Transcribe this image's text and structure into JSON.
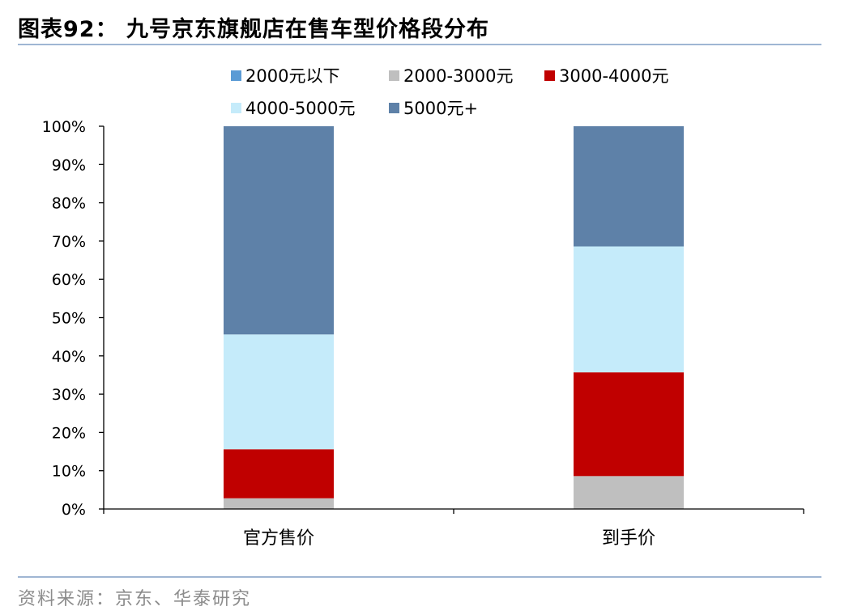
{
  "header": {
    "title": "图表92：  九号京东旗舰店在售车型价格段分布"
  },
  "footer": {
    "source": "资料来源：京东、华泰研究"
  },
  "chart_data": {
    "type": "bar",
    "stacked": true,
    "categories": [
      "官方售价",
      "到手价"
    ],
    "series": [
      {
        "name": "2000元以下",
        "color": "#5b9bd5",
        "values": [
          0,
          0
        ]
      },
      {
        "name": "2000-3000元",
        "color": "#bfbfbf",
        "values": [
          2.8,
          8.6
        ]
      },
      {
        "name": "3000-4000元",
        "color": "#c00000",
        "values": [
          12.8,
          27.1
        ]
      },
      {
        "name": "4000-5000元",
        "color": "#c5ebfa",
        "values": [
          30.0,
          32.9
        ]
      },
      {
        "name": "5000元+",
        "color": "#5e81a8",
        "values": [
          54.4,
          31.4
        ]
      }
    ],
    "yticks": [
      "0%",
      "10%",
      "20%",
      "30%",
      "40%",
      "50%",
      "60%",
      "70%",
      "80%",
      "90%",
      "100%"
    ],
    "ylim": [
      0,
      100
    ],
    "grid": false,
    "legend": "top"
  }
}
